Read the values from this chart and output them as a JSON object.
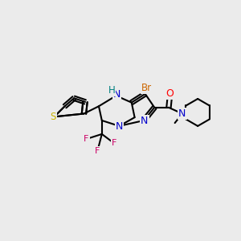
{
  "background_color": "#ebebeb",
  "bond_color": "#000000",
  "atom_colors": {
    "S": "#c8b400",
    "N": "#0000cc",
    "H": "#008080",
    "Br": "#cc6600",
    "F": "#cc0066",
    "O": "#ff0000",
    "C": "#000000"
  },
  "figsize": [
    3.0,
    3.0
  ],
  "dpi": 100
}
